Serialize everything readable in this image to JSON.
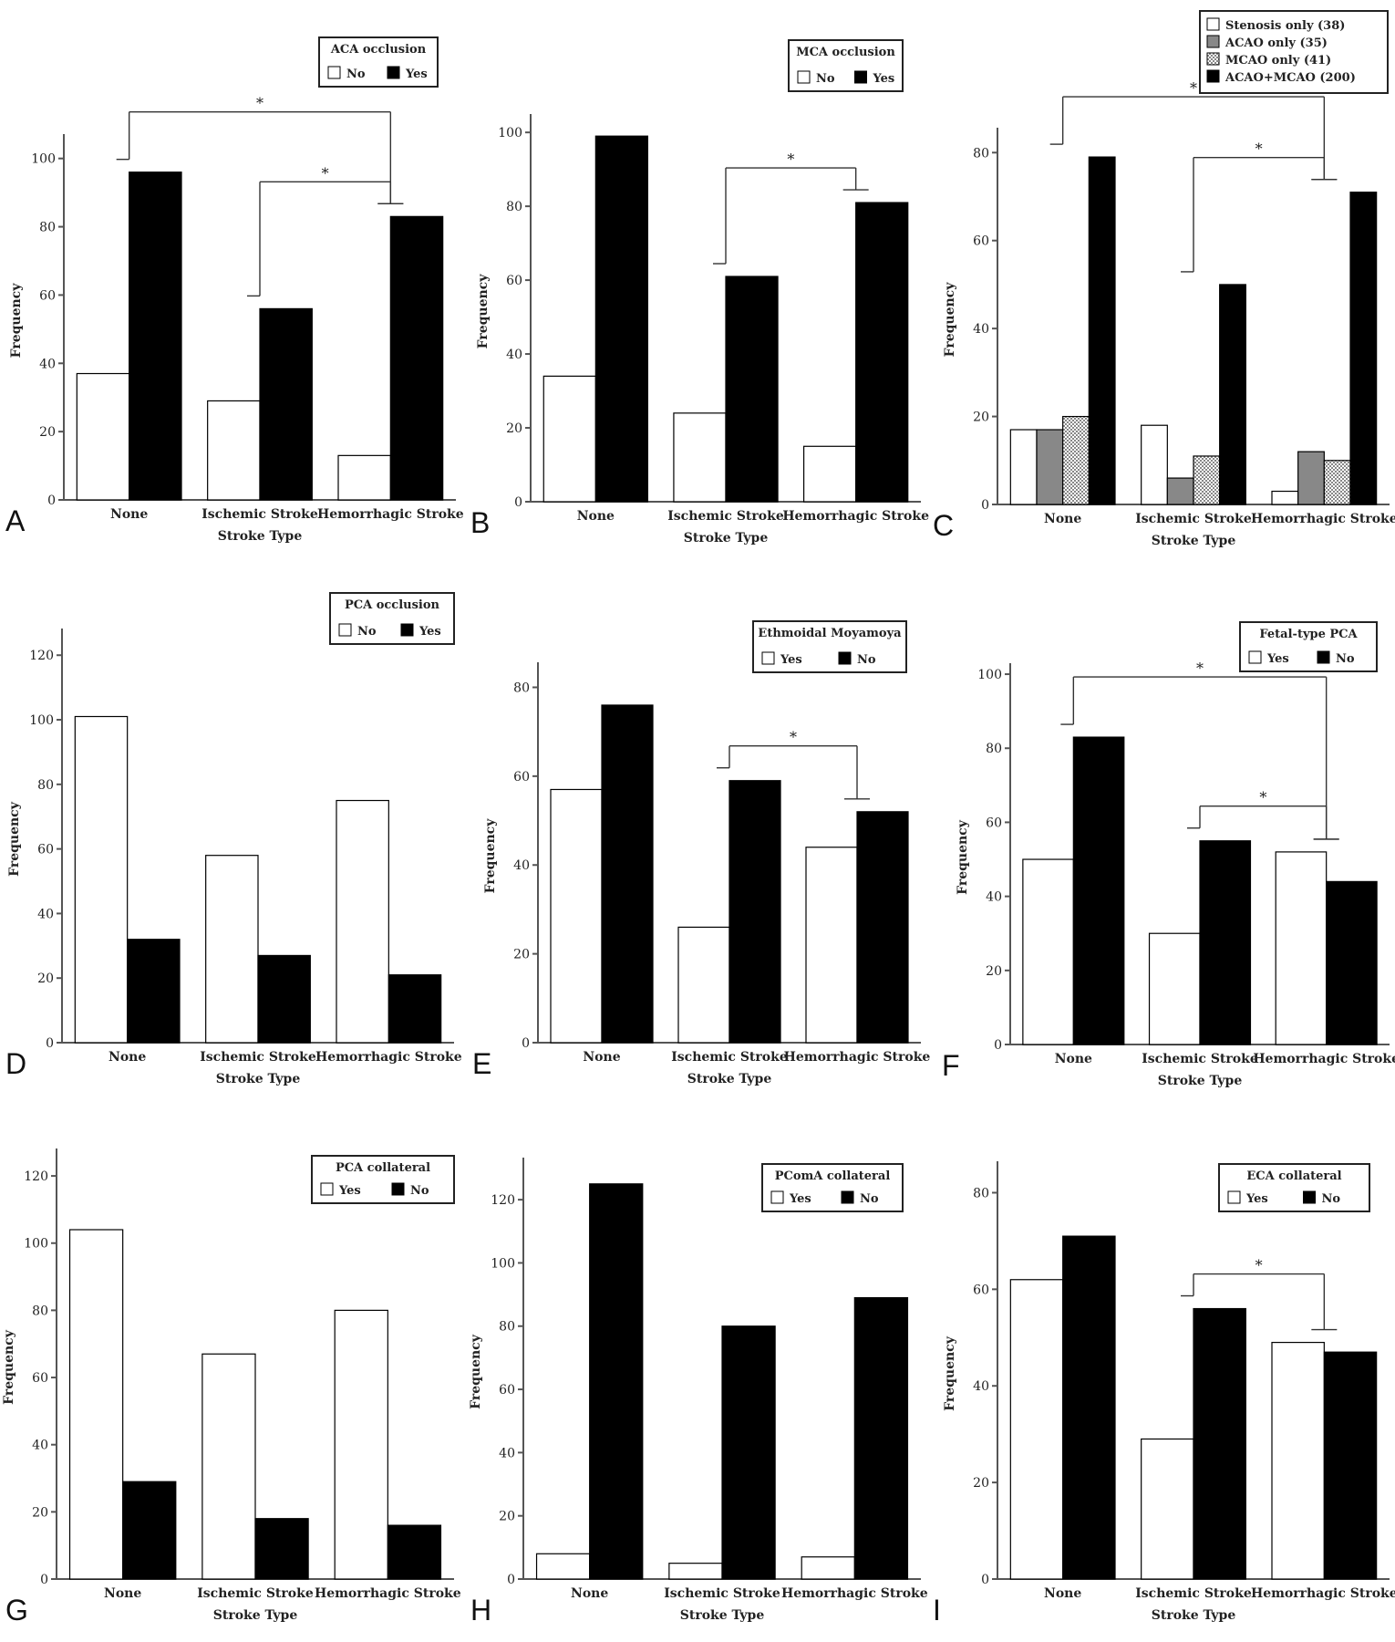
{
  "figure": {
    "x_label": "Stroke Type",
    "y_label": "Frequency",
    "categories": [
      "None",
      "Ischemic Stroke",
      "Hemorrhagic Stroke"
    ],
    "significance_mark": "*"
  },
  "chart_data": [
    {
      "panel": "A",
      "type": "bar",
      "legend_title": "ACA occlusion",
      "categories": [
        "None",
        "Ischemic Stroke",
        "Hemorrhagic Stroke"
      ],
      "series": [
        {
          "name": "No",
          "fill": "white",
          "values": [
            37,
            29,
            13
          ]
        },
        {
          "name": "Yes",
          "fill": "black",
          "values": [
            96,
            56,
            83
          ]
        }
      ],
      "ylim": [
        0,
        105
      ],
      "yticks": [
        0,
        20,
        40,
        60,
        80,
        100
      ],
      "xlabel": "Stroke Type",
      "ylabel": "Frequency",
      "significance": [
        {
          "from": "None",
          "to": "Hemorrhagic Stroke",
          "label": "*"
        },
        {
          "from": "Ischemic Stroke",
          "to": "Hemorrhagic Stroke",
          "label": "*"
        }
      ]
    },
    {
      "panel": "B",
      "type": "bar",
      "legend_title": "MCA occlusion",
      "categories": [
        "None",
        "Ischemic Stroke",
        "Hemorrhagic Stroke"
      ],
      "series": [
        {
          "name": "No",
          "fill": "white",
          "values": [
            34,
            24,
            15
          ]
        },
        {
          "name": "Yes",
          "fill": "black",
          "values": [
            99,
            61,
            81
          ]
        }
      ],
      "ylim": [
        0,
        103
      ],
      "yticks": [
        0,
        20,
        40,
        60,
        80,
        100
      ],
      "xlabel": "Stroke Type",
      "ylabel": "Frequency",
      "significance": [
        {
          "from": "Ischemic Stroke",
          "to": "Hemorrhagic Stroke",
          "label": "*"
        }
      ]
    },
    {
      "panel": "C",
      "type": "bar",
      "legend_title": "",
      "categories": [
        "None",
        "Ischemic Stroke",
        "Hemorrhagic Stroke"
      ],
      "series": [
        {
          "name": "Stenosis only (38)",
          "fill": "white",
          "values": [
            17,
            18,
            3
          ]
        },
        {
          "name": "ACAO only (35)",
          "fill": "gray",
          "values": [
            17,
            6,
            12
          ]
        },
        {
          "name": "MCAO only (41)",
          "fill": "dotted",
          "values": [
            20,
            11,
            10
          ]
        },
        {
          "name": "ACAO+MCAO (200)",
          "fill": "black",
          "values": [
            79,
            50,
            71
          ]
        }
      ],
      "ylim": [
        0,
        84
      ],
      "yticks": [
        0,
        20,
        40,
        60,
        80
      ],
      "xlabel": "Stroke Type",
      "ylabel": "Frequency",
      "significance": [
        {
          "from": "None",
          "to": "Hemorrhagic Stroke",
          "label": "*"
        },
        {
          "from": "Ischemic Stroke",
          "to": "Hemorrhagic Stroke",
          "label": "*"
        }
      ]
    },
    {
      "panel": "D",
      "type": "bar",
      "legend_title": "PCA occlusion",
      "categories": [
        "None",
        "Ischemic Stroke",
        "Hemorrhagic Stroke"
      ],
      "series": [
        {
          "name": "No",
          "fill": "white",
          "values": [
            101,
            58,
            75
          ]
        },
        {
          "name": "Yes",
          "fill": "black",
          "values": [
            32,
            27,
            21
          ]
        }
      ],
      "ylim": [
        0,
        126
      ],
      "yticks": [
        0,
        20,
        40,
        60,
        80,
        100,
        120
      ],
      "xlabel": "Stroke Type",
      "ylabel": "Frequency",
      "significance": []
    },
    {
      "panel": "E",
      "type": "bar",
      "legend_title": "Ethmoidal Moyamoya",
      "categories": [
        "None",
        "Ischemic Stroke",
        "Hemorrhagic Stroke"
      ],
      "series": [
        {
          "name": "Yes",
          "fill": "white",
          "values": [
            57,
            26,
            44
          ]
        },
        {
          "name": "No",
          "fill": "black",
          "values": [
            76,
            59,
            52
          ]
        }
      ],
      "ylim": [
        0,
        84
      ],
      "yticks": [
        0,
        20,
        40,
        60,
        80
      ],
      "xlabel": "Stroke Type",
      "ylabel": "Frequency",
      "significance": [
        {
          "from": "Ischemic Stroke",
          "to": "Hemorrhagic Stroke",
          "label": "*"
        }
      ]
    },
    {
      "panel": "F",
      "type": "bar",
      "legend_title": "Fetal-type PCA",
      "categories": [
        "None",
        "Ischemic Stroke",
        "Hemorrhagic Stroke"
      ],
      "series": [
        {
          "name": "Yes",
          "fill": "white",
          "values": [
            50,
            30,
            52
          ]
        },
        {
          "name": "No",
          "fill": "black",
          "values": [
            83,
            55,
            44
          ]
        }
      ],
      "ylim": [
        0,
        101
      ],
      "yticks": [
        0,
        20,
        40,
        60,
        80,
        100
      ],
      "xlabel": "Stroke Type",
      "ylabel": "Frequency",
      "significance": [
        {
          "from": "None",
          "to": "Hemorrhagic Stroke",
          "label": "*"
        },
        {
          "from": "Ischemic Stroke",
          "to": "Hemorrhagic Stroke",
          "label": "*"
        }
      ]
    },
    {
      "panel": "G",
      "type": "bar",
      "legend_title": "PCA collateral",
      "categories": [
        "None",
        "Ischemic Stroke",
        "Hemorrhagic Stroke"
      ],
      "series": [
        {
          "name": "Yes",
          "fill": "white",
          "values": [
            104,
            67,
            80
          ]
        },
        {
          "name": "No",
          "fill": "black",
          "values": [
            29,
            18,
            16
          ]
        }
      ],
      "ylim": [
        0,
        126
      ],
      "yticks": [
        0,
        20,
        40,
        60,
        80,
        100,
        120
      ],
      "xlabel": "Stroke Type",
      "ylabel": "Frequency",
      "significance": []
    },
    {
      "panel": "H",
      "type": "bar",
      "legend_title": "PComA collateral",
      "categories": [
        "None",
        "Ischemic Stroke",
        "Hemorrhagic Stroke"
      ],
      "series": [
        {
          "name": "Yes",
          "fill": "white",
          "values": [
            8,
            5,
            7
          ]
        },
        {
          "name": "No",
          "fill": "black",
          "values": [
            125,
            80,
            89
          ]
        }
      ],
      "ylim": [
        0,
        131
      ],
      "yticks": [
        0,
        20,
        40,
        60,
        80,
        100,
        120
      ],
      "xlabel": "Stroke Type",
      "ylabel": "Frequency",
      "significance": []
    },
    {
      "panel": "I",
      "type": "bar",
      "legend_title": "ECA collateral",
      "categories": [
        "None",
        "Ischemic Stroke",
        "Hemorrhagic Stroke"
      ],
      "series": [
        {
          "name": "Yes",
          "fill": "white",
          "values": [
            62,
            29,
            49
          ]
        },
        {
          "name": "No",
          "fill": "black",
          "values": [
            71,
            56,
            47
          ]
        }
      ],
      "ylim": [
        0,
        85
      ],
      "yticks": [
        0,
        20,
        40,
        60,
        80
      ],
      "xlabel": "Stroke Type",
      "ylabel": "Frequency",
      "significance": [
        {
          "from": "Ischemic Stroke",
          "to": "Hemorrhagic Stroke",
          "label": "*"
        }
      ]
    }
  ]
}
